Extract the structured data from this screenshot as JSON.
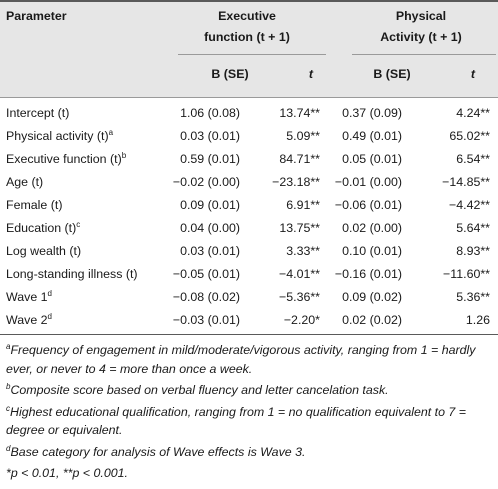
{
  "header": {
    "parameter": "Parameter",
    "group1_line1": "Executive",
    "group1_line2": "function (t + 1)",
    "group2_line1": "Physical",
    "group2_line2": "Activity (t + 1)",
    "col_b": "B (SE)",
    "col_t": "t"
  },
  "rows": [
    {
      "param": "Intercept (t)",
      "sup": "",
      "b1": "1.06 (0.08)",
      "t1": "13.74**",
      "b2": "0.37 (0.09)",
      "t2": "4.24**"
    },
    {
      "param": "Physical activity (t)",
      "sup": "a",
      "b1": "0.03 (0.01)",
      "t1": "5.09**",
      "b2": "0.49 (0.01)",
      "t2": "65.02**"
    },
    {
      "param": "Executive function (t)",
      "sup": "b",
      "b1": "0.59 (0.01)",
      "t1": "84.71**",
      "b2": "0.05 (0.01)",
      "t2": "6.54**"
    },
    {
      "param": "Age (t)",
      "sup": "",
      "b1": "−0.02 (0.00)",
      "t1": "−23.18**",
      "b2": "−0.01 (0.00)",
      "t2": "−14.85**"
    },
    {
      "param": "Female (t)",
      "sup": "",
      "b1": "0.09 (0.01)",
      "t1": "6.91**",
      "b2": "−0.06 (0.01)",
      "t2": "−4.42**"
    },
    {
      "param": "Education (t)",
      "sup": "c",
      "b1": "0.04 (0.00)",
      "t1": "13.75**",
      "b2": "0.02 (0.00)",
      "t2": "5.64**"
    },
    {
      "param": "Log wealth (t)",
      "sup": "",
      "b1": "0.03 (0.01)",
      "t1": "3.33**",
      "b2": "0.10 (0.01)",
      "t2": "8.93**"
    },
    {
      "param": "Long-standing illness (t)",
      "sup": "",
      "b1": "−0.05 (0.01)",
      "t1": "−4.01**",
      "b2": "−0.16 (0.01)",
      "t2": "−11.60**"
    },
    {
      "param": "Wave 1",
      "sup": "d",
      "b1": "−0.08 (0.02)",
      "t1": "−5.36**",
      "b2": "0.09 (0.02)",
      "t2": "5.36**"
    },
    {
      "param": "Wave 2",
      "sup": "d",
      "b1": "−0.03 (0.01)",
      "t1": "−2.20*",
      "b2": "0.02 (0.02)",
      "t2": "1.26"
    }
  ],
  "notes": {
    "a_sup": "a",
    "a_text": "Frequency of engagement in mild/moderate/vigorous activity, ranging from 1 = hardly ever, or never to 4 = more than once a week.",
    "b_sup": "b",
    "b_text": "Composite score based on verbal fluency and letter cancelation task.",
    "c_sup": "c",
    "c_text": "Highest educational qualification, ranging from 1 = no qualification equivalent to 7 = degree or equivalent.",
    "d_sup": "d",
    "d_text": "Base category for analysis of Wave effects is Wave 3.",
    "sig_text": "*p < 0.01, **p < 0.001."
  }
}
